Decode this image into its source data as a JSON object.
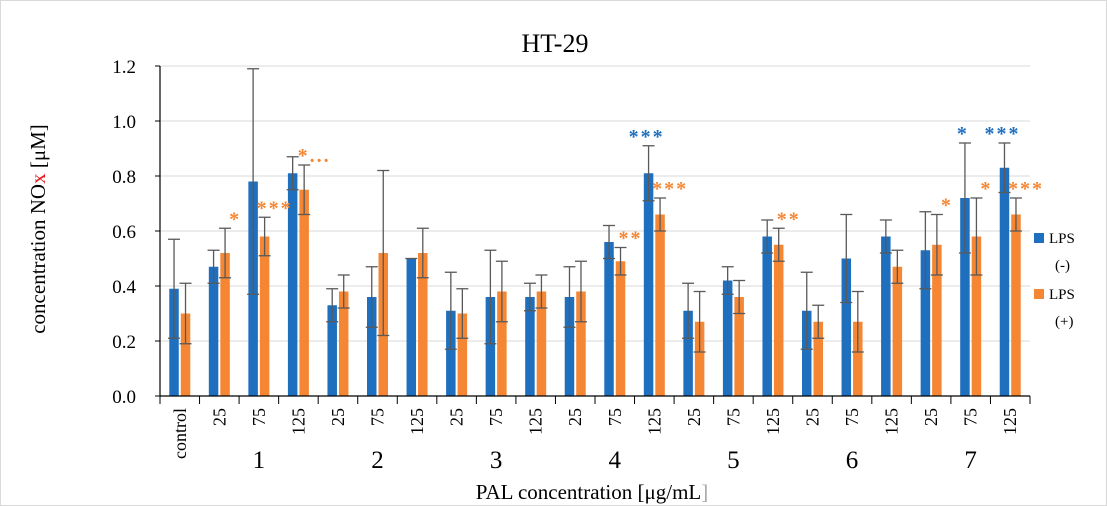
{
  "chart_data": {
    "type": "bar",
    "title": "HT-29",
    "ylabel": {
      "pre": "concentration NO",
      "x": "x",
      "post": " [μM]"
    },
    "xlabel": {
      "pre": "PAL concentration [μg/mL",
      "post": "]"
    },
    "ylim": [
      0,
      1.2
    ],
    "yticks": [
      "0.0",
      "0.2",
      "0.4",
      "0.6",
      "0.8",
      "1.0",
      "1.2"
    ],
    "grid": true,
    "legend_position": "right",
    "categories": [
      "control",
      "25",
      "75",
      "125",
      "25",
      "75",
      "125",
      "25",
      "75",
      "125",
      "25",
      "75",
      "125",
      "25",
      "75",
      "125",
      "25",
      "75",
      "125",
      "25",
      "75",
      "125"
    ],
    "groups": [
      {
        "label": "1",
        "start": 1,
        "end": 3
      },
      {
        "label": "2",
        "start": 4,
        "end": 6
      },
      {
        "label": "3",
        "start": 7,
        "end": 9
      },
      {
        "label": "4",
        "start": 10,
        "end": 12
      },
      {
        "label": "5",
        "start": 13,
        "end": 15
      },
      {
        "label": "6",
        "start": 16,
        "end": 18
      },
      {
        "label": "7",
        "start": 19,
        "end": 21
      }
    ],
    "series": [
      {
        "name": "LPS (-)",
        "color": "#1f6fbf",
        "values": [
          0.39,
          0.47,
          0.78,
          0.81,
          0.33,
          0.36,
          0.5,
          0.31,
          0.36,
          0.36,
          0.36,
          0.56,
          0.81,
          0.31,
          0.42,
          0.58,
          0.31,
          0.5,
          0.58,
          0.53,
          0.72,
          0.83
        ],
        "errors": [
          0.18,
          0.06,
          0.41,
          0.06,
          0.06,
          0.11,
          0.0,
          0.14,
          0.17,
          0.05,
          0.11,
          0.06,
          0.1,
          0.1,
          0.05,
          0.06,
          0.14,
          0.16,
          0.06,
          0.14,
          0.2,
          0.09
        ],
        "marks": [
          "",
          "",
          "",
          "",
          "",
          "",
          "",
          "",
          "",
          "",
          "",
          "",
          "***",
          "",
          "",
          "",
          "",
          "",
          "",
          "",
          "*",
          "***"
        ]
      },
      {
        "name": "LPS (+)",
        "color": "#f58634",
        "values": [
          0.3,
          0.52,
          0.58,
          0.75,
          0.38,
          0.52,
          0.52,
          0.3,
          0.38,
          0.38,
          0.38,
          0.49,
          0.66,
          0.27,
          0.36,
          0.55,
          0.27,
          0.27,
          0.47,
          0.55,
          0.58,
          0.66
        ],
        "errors": [
          0.11,
          0.09,
          0.07,
          0.09,
          0.06,
          0.3,
          0.09,
          0.09,
          0.11,
          0.06,
          0.11,
          0.05,
          0.06,
          0.11,
          0.06,
          0.06,
          0.06,
          0.11,
          0.06,
          0.11,
          0.14,
          0.06
        ],
        "marks": [
          "",
          "*",
          "***",
          "*...",
          "",
          "",
          "",
          "",
          "",
          "",
          "",
          "**",
          "***",
          "",
          "",
          "**",
          "",
          "",
          "",
          "*",
          "*",
          "***"
        ]
      }
    ]
  },
  "legend": [
    {
      "line1": "LPS",
      "line2": "(-)",
      "color": "#1f6fbf"
    },
    {
      "line1": "LPS",
      "line2": "(+)",
      "color": "#f58634"
    }
  ]
}
